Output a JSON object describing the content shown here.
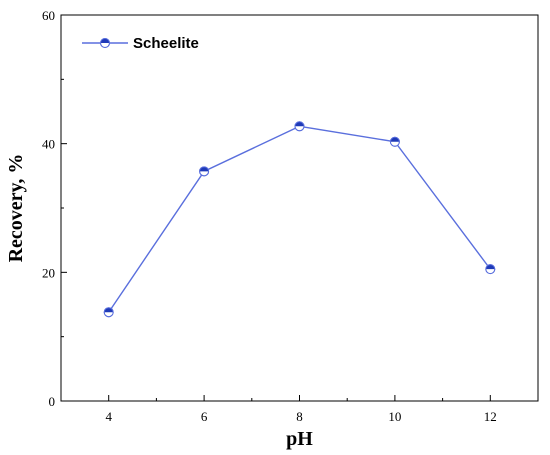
{
  "chart_data": {
    "type": "line",
    "x": [
      4,
      6,
      8,
      10,
      12
    ],
    "series": [
      {
        "name": "Scheelite",
        "values": [
          13.8,
          35.7,
          42.7,
          40.3,
          20.5
        ]
      }
    ],
    "xlabel": "pH",
    "ylabel": "Recovery, %",
    "xlim": [
      3,
      13
    ],
    "ylim": [
      0,
      60
    ],
    "xticks": [
      "4",
      "6",
      "8",
      "10",
      "12"
    ],
    "yticks": [
      "0",
      "20",
      "40",
      "60"
    ],
    "legend_position": "top-left",
    "grid": false,
    "colors": {
      "line": "#5a6fdd",
      "marker_fill": "#1f3ab8",
      "axis": "#000000"
    }
  }
}
